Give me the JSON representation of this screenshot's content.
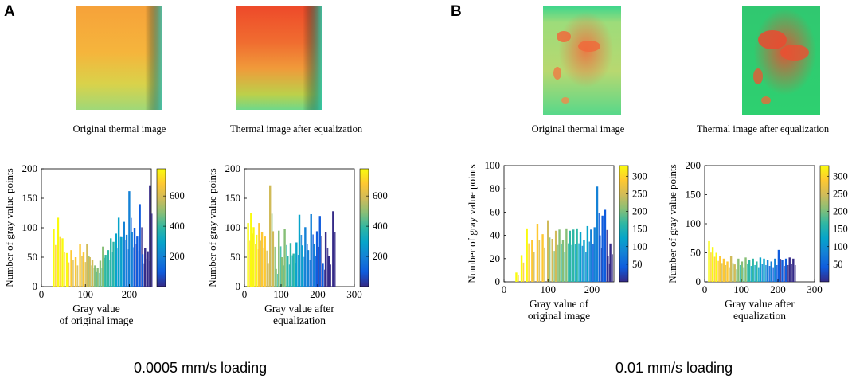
{
  "panels": {
    "A": {
      "letter": "A",
      "loading_label": "0.0005 mm/s loading",
      "caption_original": "Original thermal image",
      "caption_equalized": "Thermal image after equalization"
    },
    "B": {
      "letter": "B",
      "loading_label": "0.01 mm/s loading",
      "caption_original": "Original thermal image",
      "caption_equalized": "Thermal image after equalization"
    }
  },
  "colors": {
    "parula": [
      "#352a87",
      "#0f5cdd",
      "#1481d6",
      "#06a4ca",
      "#2eb7a4",
      "#87bf77",
      "#d1bb59",
      "#fec832",
      "#f9fb0e"
    ]
  },
  "chart_data": [
    {
      "type": "bar",
      "panel": "A",
      "title": "",
      "xlabel": [
        "Gray value",
        "of original image"
      ],
      "ylabel": "Number of gray value points",
      "xlim": [
        0,
        250
      ],
      "ylim": [
        0,
        200
      ],
      "xticks": [
        0,
        100,
        200
      ],
      "yticks": [
        0,
        50,
        100,
        150,
        200
      ],
      "colorbar": {
        "ticks": [
          200,
          400,
          600
        ],
        "range": [
          0,
          780
        ]
      },
      "x": [
        28,
        38,
        48,
        58,
        68,
        78,
        88,
        96,
        104,
        110,
        116,
        122,
        128,
        134,
        140,
        146,
        152,
        158,
        164,
        170,
        176,
        182,
        188,
        194,
        200,
        206,
        212,
        218,
        224,
        230,
        236,
        242,
        247
      ],
      "values": [
        98,
        117,
        82,
        57,
        62,
        50,
        72,
        58,
        73,
        50,
        45,
        36,
        32,
        44,
        68,
        54,
        62,
        82,
        76,
        90,
        117,
        84,
        110,
        88,
        162,
        93,
        100,
        85,
        140,
        55,
        66,
        60,
        172
      ]
    },
    {
      "type": "bar",
      "panel": "A",
      "title": "",
      "xlabel": [
        "Gray value after",
        "equalization"
      ],
      "ylabel": "Number of gray value points",
      "xlim": [
        0,
        300
      ],
      "ylim": [
        0,
        200
      ],
      "xticks": [
        0,
        100,
        200,
        300
      ],
      "yticks": [
        0,
        50,
        100,
        150,
        200
      ],
      "colorbar": {
        "ticks": [
          200,
          400,
          600
        ],
        "range": [
          0,
          780
        ]
      },
      "x": [
        10,
        18,
        25,
        33,
        40,
        48,
        56,
        64,
        70,
        78,
        86,
        94,
        102,
        110,
        118,
        126,
        134,
        142,
        150,
        158,
        166,
        174,
        182,
        190,
        198,
        206,
        214,
        222,
        230,
        242
      ],
      "values": [
        108,
        125,
        101,
        88,
        108,
        92,
        85,
        40,
        172,
        94,
        30,
        95,
        50,
        98,
        52,
        74,
        56,
        75,
        122,
        70,
        101,
        62,
        123,
        72,
        94,
        120,
        40,
        92,
        52,
        128
      ]
    },
    {
      "type": "bar",
      "panel": "B",
      "title": "",
      "xlabel": [
        "Gray value of",
        "original image"
      ],
      "ylabel": "Number of gray value points",
      "xlim": [
        0,
        250
      ],
      "ylim": [
        0,
        100
      ],
      "xticks": [
        0,
        100,
        200
      ],
      "yticks": [
        0,
        20,
        40,
        60,
        80,
        100
      ],
      "colorbar": {
        "ticks": [
          50,
          100,
          150,
          200,
          250,
          300
        ],
        "range": [
          0,
          330
        ]
      },
      "x": [
        28,
        40,
        52,
        64,
        76,
        88,
        100,
        110,
        118,
        126,
        134,
        142,
        150,
        158,
        166,
        174,
        182,
        190,
        198,
        206,
        212,
        218,
        224,
        230,
        236,
        242
      ],
      "values": [
        8,
        23,
        46,
        36,
        50,
        41,
        53,
        37,
        44,
        45,
        36,
        46,
        44,
        45,
        46,
        43,
        36,
        48,
        45,
        47,
        82,
        40,
        57,
        62,
        22,
        33
      ]
    },
    {
      "type": "bar",
      "panel": "B",
      "title": "",
      "xlabel": [
        "Gray value after",
        "equalization"
      ],
      "ylabel": "Number of gray value points",
      "xlim": [
        0,
        300
      ],
      "ylim": [
        0,
        200
      ],
      "xticks": [
        0,
        100,
        200,
        300
      ],
      "yticks": [
        0,
        50,
        100,
        150,
        200
      ],
      "colorbar": {
        "ticks": [
          50,
          100,
          150,
          200,
          250,
          300
        ],
        "range": [
          0,
          330
        ]
      },
      "x": [
        12,
        22,
        32,
        42,
        52,
        62,
        72,
        82,
        92,
        102,
        112,
        122,
        132,
        142,
        152,
        162,
        172,
        182,
        192,
        202,
        212,
        222,
        232,
        242
      ],
      "values": [
        70,
        60,
        50,
        45,
        40,
        35,
        45,
        30,
        40,
        35,
        42,
        38,
        40,
        35,
        42,
        40,
        38,
        35,
        40,
        55,
        38,
        40,
        42,
        40
      ]
    }
  ]
}
